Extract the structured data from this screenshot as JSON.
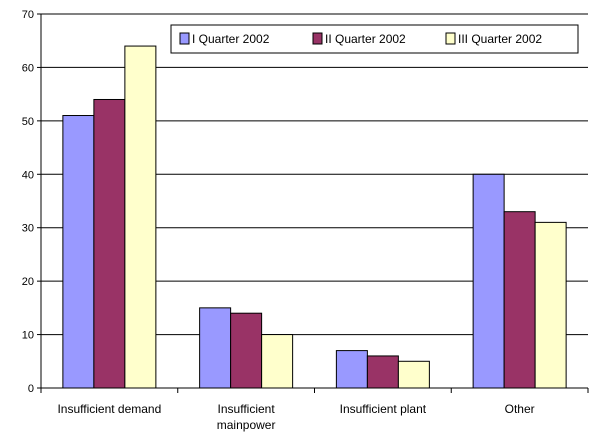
{
  "chart_data": {
    "type": "bar",
    "categories": [
      [
        "Insufficient demand"
      ],
      [
        "Insufficient",
        "mainpower"
      ],
      [
        "Insufficient plant"
      ],
      [
        "Other"
      ]
    ],
    "series": [
      {
        "name": "I Quarter 2002",
        "values": [
          51,
          15,
          7,
          40
        ],
        "color": "#9999ff"
      },
      {
        "name": "II Quarter 2002",
        "values": [
          54,
          14,
          6,
          33
        ],
        "color": "#993366"
      },
      {
        "name": "III Quarter 2002",
        "values": [
          64,
          10,
          5,
          31
        ],
        "color": "#ffffcc"
      }
    ],
    "ylim": [
      0,
      70
    ],
    "yticks": [
      0,
      10,
      20,
      30,
      40,
      50,
      60,
      70
    ],
    "grid": true,
    "legend_position": "top-right",
    "title": "",
    "xlabel": "",
    "ylabel": ""
  }
}
